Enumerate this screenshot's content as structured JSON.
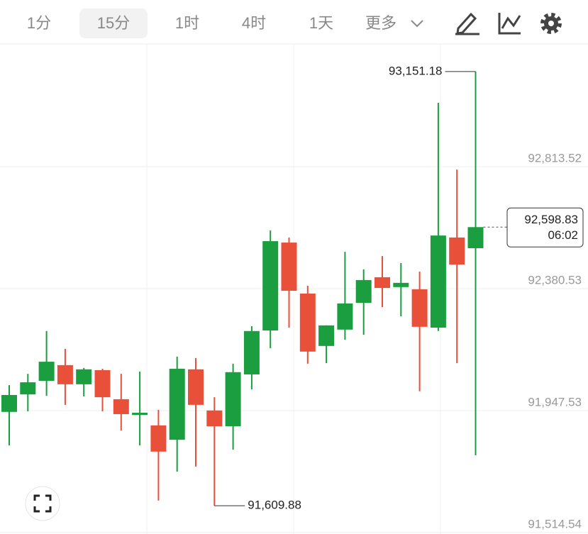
{
  "toolbar": {
    "tabs": [
      "1分",
      "15分",
      "1时",
      "4时",
      "1天"
    ],
    "selected_tab": 1,
    "more": "更多"
  },
  "chart_data": {
    "type": "candlestick",
    "series": {
      "open": [
        91943,
        92005,
        92053,
        92109,
        92041,
        92091,
        91988,
        91932,
        91895,
        91844,
        92094,
        91948,
        91892,
        92076,
        92232,
        92544,
        92363,
        92177,
        92235,
        92330,
        92421,
        92386,
        92378,
        92242,
        92562,
        92524
      ],
      "high": [
        92038,
        92078,
        92230,
        92167,
        92099,
        92096,
        92078,
        92086,
        91950,
        92139,
        92134,
        91995,
        92114,
        92247,
        92587,
        92562,
        92391,
        92250,
        92511,
        92449,
        92496,
        92471,
        92441,
        93040,
        92803,
        93151.18
      ],
      "low": [
        91824,
        91945,
        92000,
        91968,
        91998,
        91945,
        91877,
        91824,
        91628,
        91731,
        91749,
        91609.88,
        91809,
        92023,
        92169,
        92242,
        92114,
        92116,
        92199,
        92217,
        92315,
        92282,
        92016,
        92230,
        92116,
        91789
      ],
      "close": [
        92003,
        92048,
        92121,
        92041,
        92094,
        91995,
        91935,
        91940,
        91802,
        92096,
        91968,
        91892,
        92084,
        92230,
        92549,
        92373,
        92157,
        92250,
        92328,
        92411,
        92383,
        92401,
        92245,
        92569,
        92466,
        92598.83
      ]
    },
    "up_color": "#1a9e3f",
    "down_color": "#e8503a",
    "ylim": [
      91509.5,
      93249
    ],
    "yticks": [
      {
        "value": 92813.52,
        "label": "92,813.52"
      },
      {
        "value": 92380.53,
        "label": "92,380.53"
      },
      {
        "value": 91947.53,
        "label": "91,947.53"
      },
      {
        "value": 91514.54,
        "label": "91,514.54"
      }
    ],
    "grid": true,
    "high_label": "93,151.18",
    "low_label": "91,609.88",
    "last_label": "92,598.83",
    "countdown": "06:02"
  }
}
